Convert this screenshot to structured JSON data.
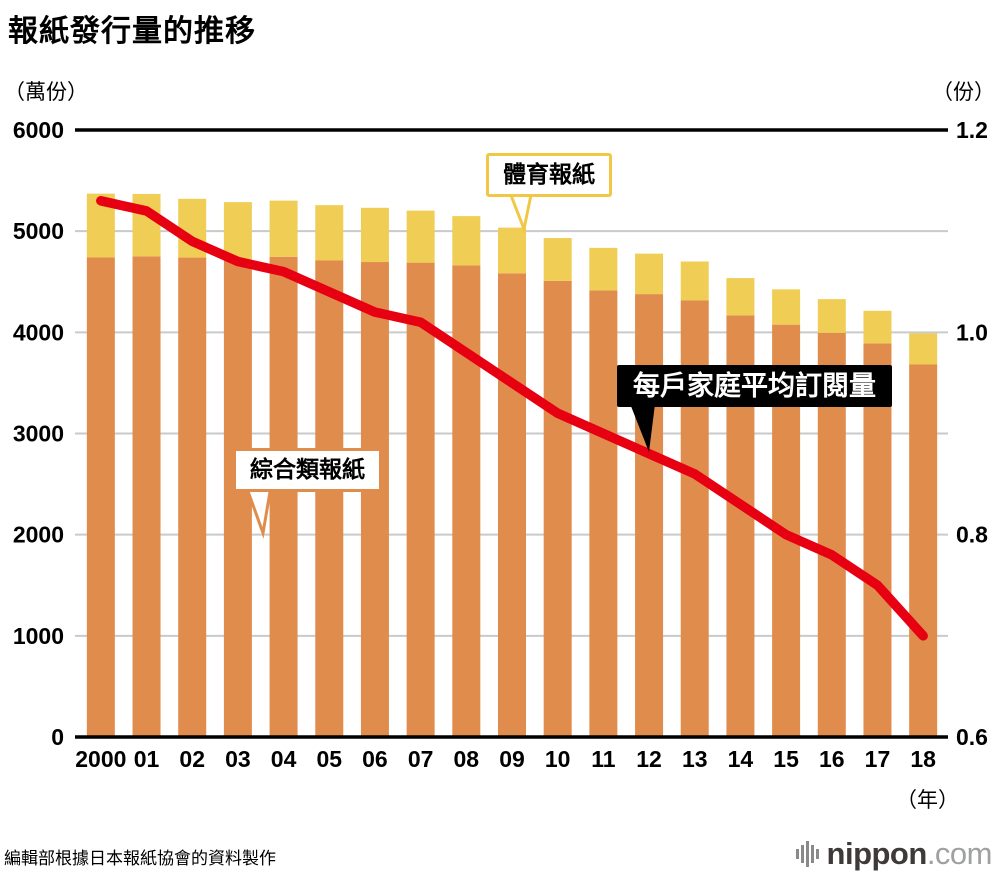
{
  "title": "報紙發行量的推移",
  "left_axis_unit": "（萬份）",
  "right_axis_unit": "（份）",
  "x_axis_unit": "（年）",
  "source": "編輯部根據日本報紙協會的資料製作",
  "logo": {
    "name": "nippon",
    "tld": ".com"
  },
  "annotations": {
    "sports_label": "體育報紙",
    "general_label": "綜合類報紙",
    "household_label": "每戶家庭平均訂閱量"
  },
  "colors": {
    "general_bar": "#e08c4c",
    "sports_bar": "#f0cd55",
    "sports_border": "#f0c845",
    "household_line": "#e60012",
    "grid": "#c9caca",
    "axis": "#000000",
    "callout_black": "#000000",
    "logo_dark": "#3e3a39",
    "logo_light": "#9fa0a0",
    "logo_icon": "#898989"
  },
  "chart_data": {
    "type": "bar",
    "subtype": "stacked-bars-with-line",
    "title": "報紙發行量的推移",
    "categories": [
      "2000",
      "01",
      "02",
      "03",
      "04",
      "05",
      "06",
      "07",
      "08",
      "09",
      "10",
      "11",
      "12",
      "13",
      "14",
      "15",
      "16",
      "17",
      "18"
    ],
    "series": [
      {
        "name": "綜合類報紙",
        "type": "bar",
        "stack": true,
        "axis": "left",
        "color": "#e08c4c",
        "values": [
          4740,
          4751,
          4739,
          4710,
          4747,
          4710,
          4695,
          4689,
          4662,
          4583,
          4509,
          4415,
          4378,
          4315,
          4168,
          4076,
          3995,
          3891,
          3682
        ]
      },
      {
        "name": "體育報紙",
        "type": "bar",
        "stack": true,
        "axis": "left",
        "color": "#f0cd55",
        "values": [
          631,
          617,
          581,
          577,
          555,
          547,
          536,
          514,
          487,
          452,
          423,
          420,
          400,
          385,
          368,
          349,
          333,
          322,
          308
        ]
      },
      {
        "name": "每戶家庭平均訂閱量",
        "type": "line",
        "axis": "right",
        "color": "#e60012",
        "values": [
          1.13,
          1.12,
          1.09,
          1.07,
          1.06,
          1.04,
          1.02,
          1.01,
          0.98,
          0.95,
          0.92,
          0.9,
          0.88,
          0.86,
          0.83,
          0.8,
          0.78,
          0.75,
          0.7
        ]
      }
    ],
    "left_axis": {
      "unit": "（萬份）",
      "min": 0,
      "max": 6000,
      "ticks": [
        "0",
        "1000",
        "2000",
        "3000",
        "4000",
        "5000",
        "6000"
      ]
    },
    "right_axis": {
      "unit": "（份）",
      "min": 0.6,
      "max": 1.2,
      "ticks": [
        "0.6",
        "0.8",
        "1.0",
        "1.2"
      ]
    },
    "x_axis": {
      "unit": "（年）"
    },
    "grid": true,
    "legend_position": "callout-labels-on-plot"
  }
}
